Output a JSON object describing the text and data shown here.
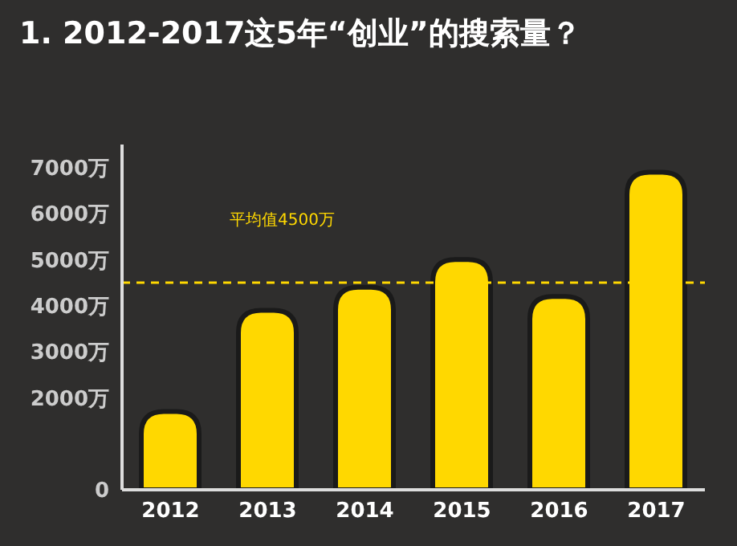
{
  "chart_data": {
    "type": "bar",
    "title": "1. 2012-2017这5年“创业”的搜索量？",
    "categories": [
      "2012",
      "2013",
      "2014",
      "2015",
      "2016",
      "2017"
    ],
    "values": [
      1700,
      3900,
      4400,
      5000,
      4200,
      6900
    ],
    "color": "#ffd800",
    "ylim": [
      0,
      7500
    ],
    "yticks": [
      0,
      {
        "value": 2000,
        "label": "2000万"
      },
      {
        "value": 3000,
        "label": "3000万"
      },
      {
        "value": 4000,
        "label": "4000万"
      },
      {
        "value": 5000,
        "label": "5000万"
      },
      {
        "value": 6000,
        "label": "6000万"
      },
      {
        "value": 7000,
        "label": "7000万"
      }
    ],
    "grid": false,
    "legend": false,
    "ref_lines": [
      {
        "axis": "y",
        "value": 4500,
        "label": "平均值4500万",
        "color": "#ffd800",
        "line_style": "dashed"
      }
    ]
  }
}
